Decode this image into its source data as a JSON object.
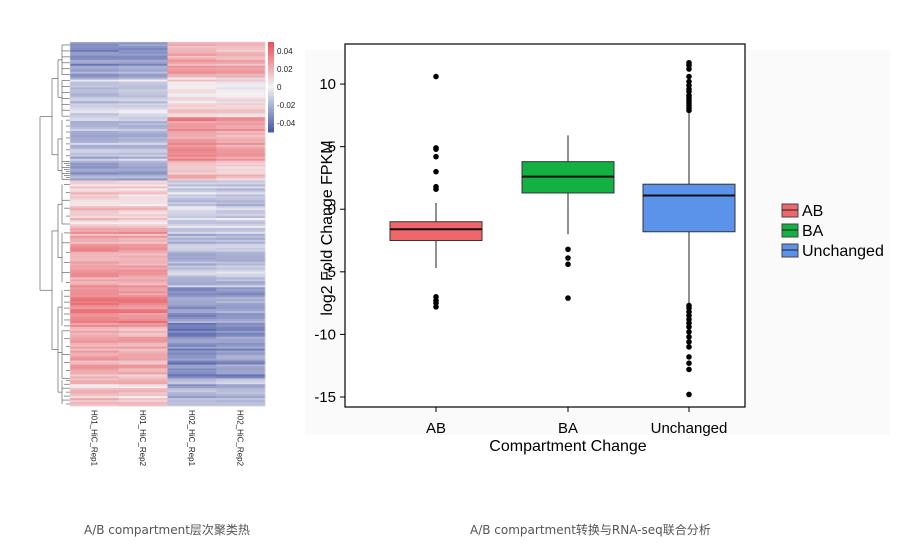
{
  "colors": {
    "heat_high": "#e8535a",
    "heat_mid": "#f4f2f4",
    "heat_low": "#4a5aa8",
    "ab": "#f0676b",
    "ba": "#13b042",
    "unchanged": "#5b93ea",
    "axis": "#000000",
    "panel_bg": "#fafafa"
  },
  "chart_data": [
    {
      "type": "heatmap",
      "title": "",
      "columns": [
        "H01_HiC_Rep1",
        "H01_HiC_Rep2",
        "H02_HiC_Rep1",
        "H02_HiC_Rep2"
      ],
      "color_scale": {
        "ticks": [
          "0.04",
          "0.02",
          "0",
          "-0.02",
          "-0.04"
        ],
        "tick_values": [
          0.04,
          0.02,
          0,
          -0.02,
          -0.04
        ],
        "range": [
          -0.05,
          0.05
        ]
      },
      "row_clusters": [
        {
          "rows": 18,
          "values": [
            -0.03,
            -0.028,
            0.022,
            0.02
          ]
        },
        {
          "rows": 20,
          "values": [
            -0.012,
            -0.01,
            0.008,
            0.006
          ]
        },
        {
          "rows": 22,
          "values": [
            -0.018,
            -0.016,
            0.03,
            0.026
          ]
        },
        {
          "rows": 10,
          "values": [
            -0.026,
            -0.024,
            0.015,
            0.012
          ]
        },
        {
          "rows": 24,
          "values": [
            0.012,
            0.01,
            -0.01,
            -0.012
          ]
        },
        {
          "rows": 30,
          "values": [
            0.026,
            0.024,
            -0.018,
            -0.016
          ]
        },
        {
          "rows": 20,
          "values": [
            0.034,
            0.032,
            -0.03,
            -0.026
          ]
        },
        {
          "rows": 26,
          "values": [
            0.022,
            0.02,
            -0.034,
            -0.03
          ]
        },
        {
          "rows": 14,
          "values": [
            0.014,
            0.012,
            -0.022,
            -0.02
          ]
        }
      ]
    },
    {
      "type": "boxplot",
      "title": "",
      "xlabel": "Compartment Change",
      "ylabel": "log2 Fold Change FPKM",
      "categories": [
        "AB",
        "BA",
        "Unchanged"
      ],
      "ylim": [
        -15.8,
        13.2
      ],
      "yticks": [
        10,
        5,
        0,
        -5,
        -10,
        -15
      ],
      "boxes": [
        {
          "name": "AB",
          "min": -4.7,
          "q1": -2.5,
          "median": -1.6,
          "q3": -1.0,
          "max": 0.5,
          "outliers": [
            10.6,
            4.9,
            4.8,
            4.2,
            3.0,
            1.8,
            1.6,
            -7.0,
            -7.3,
            -7.5,
            -7.8
          ]
        },
        {
          "name": "BA",
          "min": -2.0,
          "q1": 1.3,
          "median": 2.6,
          "q3": 3.8,
          "max": 5.9,
          "outliers": [
            -3.2,
            -3.9,
            -4.4,
            -7.1
          ]
        },
        {
          "name": "Unchanged",
          "min": -7.5,
          "q1": -1.8,
          "median": 1.1,
          "q3": 2.0,
          "max": 7.7,
          "outliers": [
            11.7,
            11.5,
            11.2,
            10.6,
            10.2,
            9.9,
            9.6,
            9.4,
            9.1,
            8.9,
            8.7,
            8.5,
            8.3,
            8.1,
            7.9,
            -7.7,
            -7.9,
            -8.2,
            -8.5,
            -8.8,
            -9.1,
            -9.4,
            -9.8,
            -10.2,
            -10.6,
            -11.0,
            -11.8,
            -12.3,
            -12.8,
            -14.8
          ]
        }
      ],
      "legend": {
        "position": "right",
        "entries": [
          "AB",
          "BA",
          "Unchanged"
        ]
      }
    }
  ],
  "captions": {
    "left": "A/B compartment层次聚类热",
    "right": "A/B compartment转换与RNA-seq联合分析"
  }
}
